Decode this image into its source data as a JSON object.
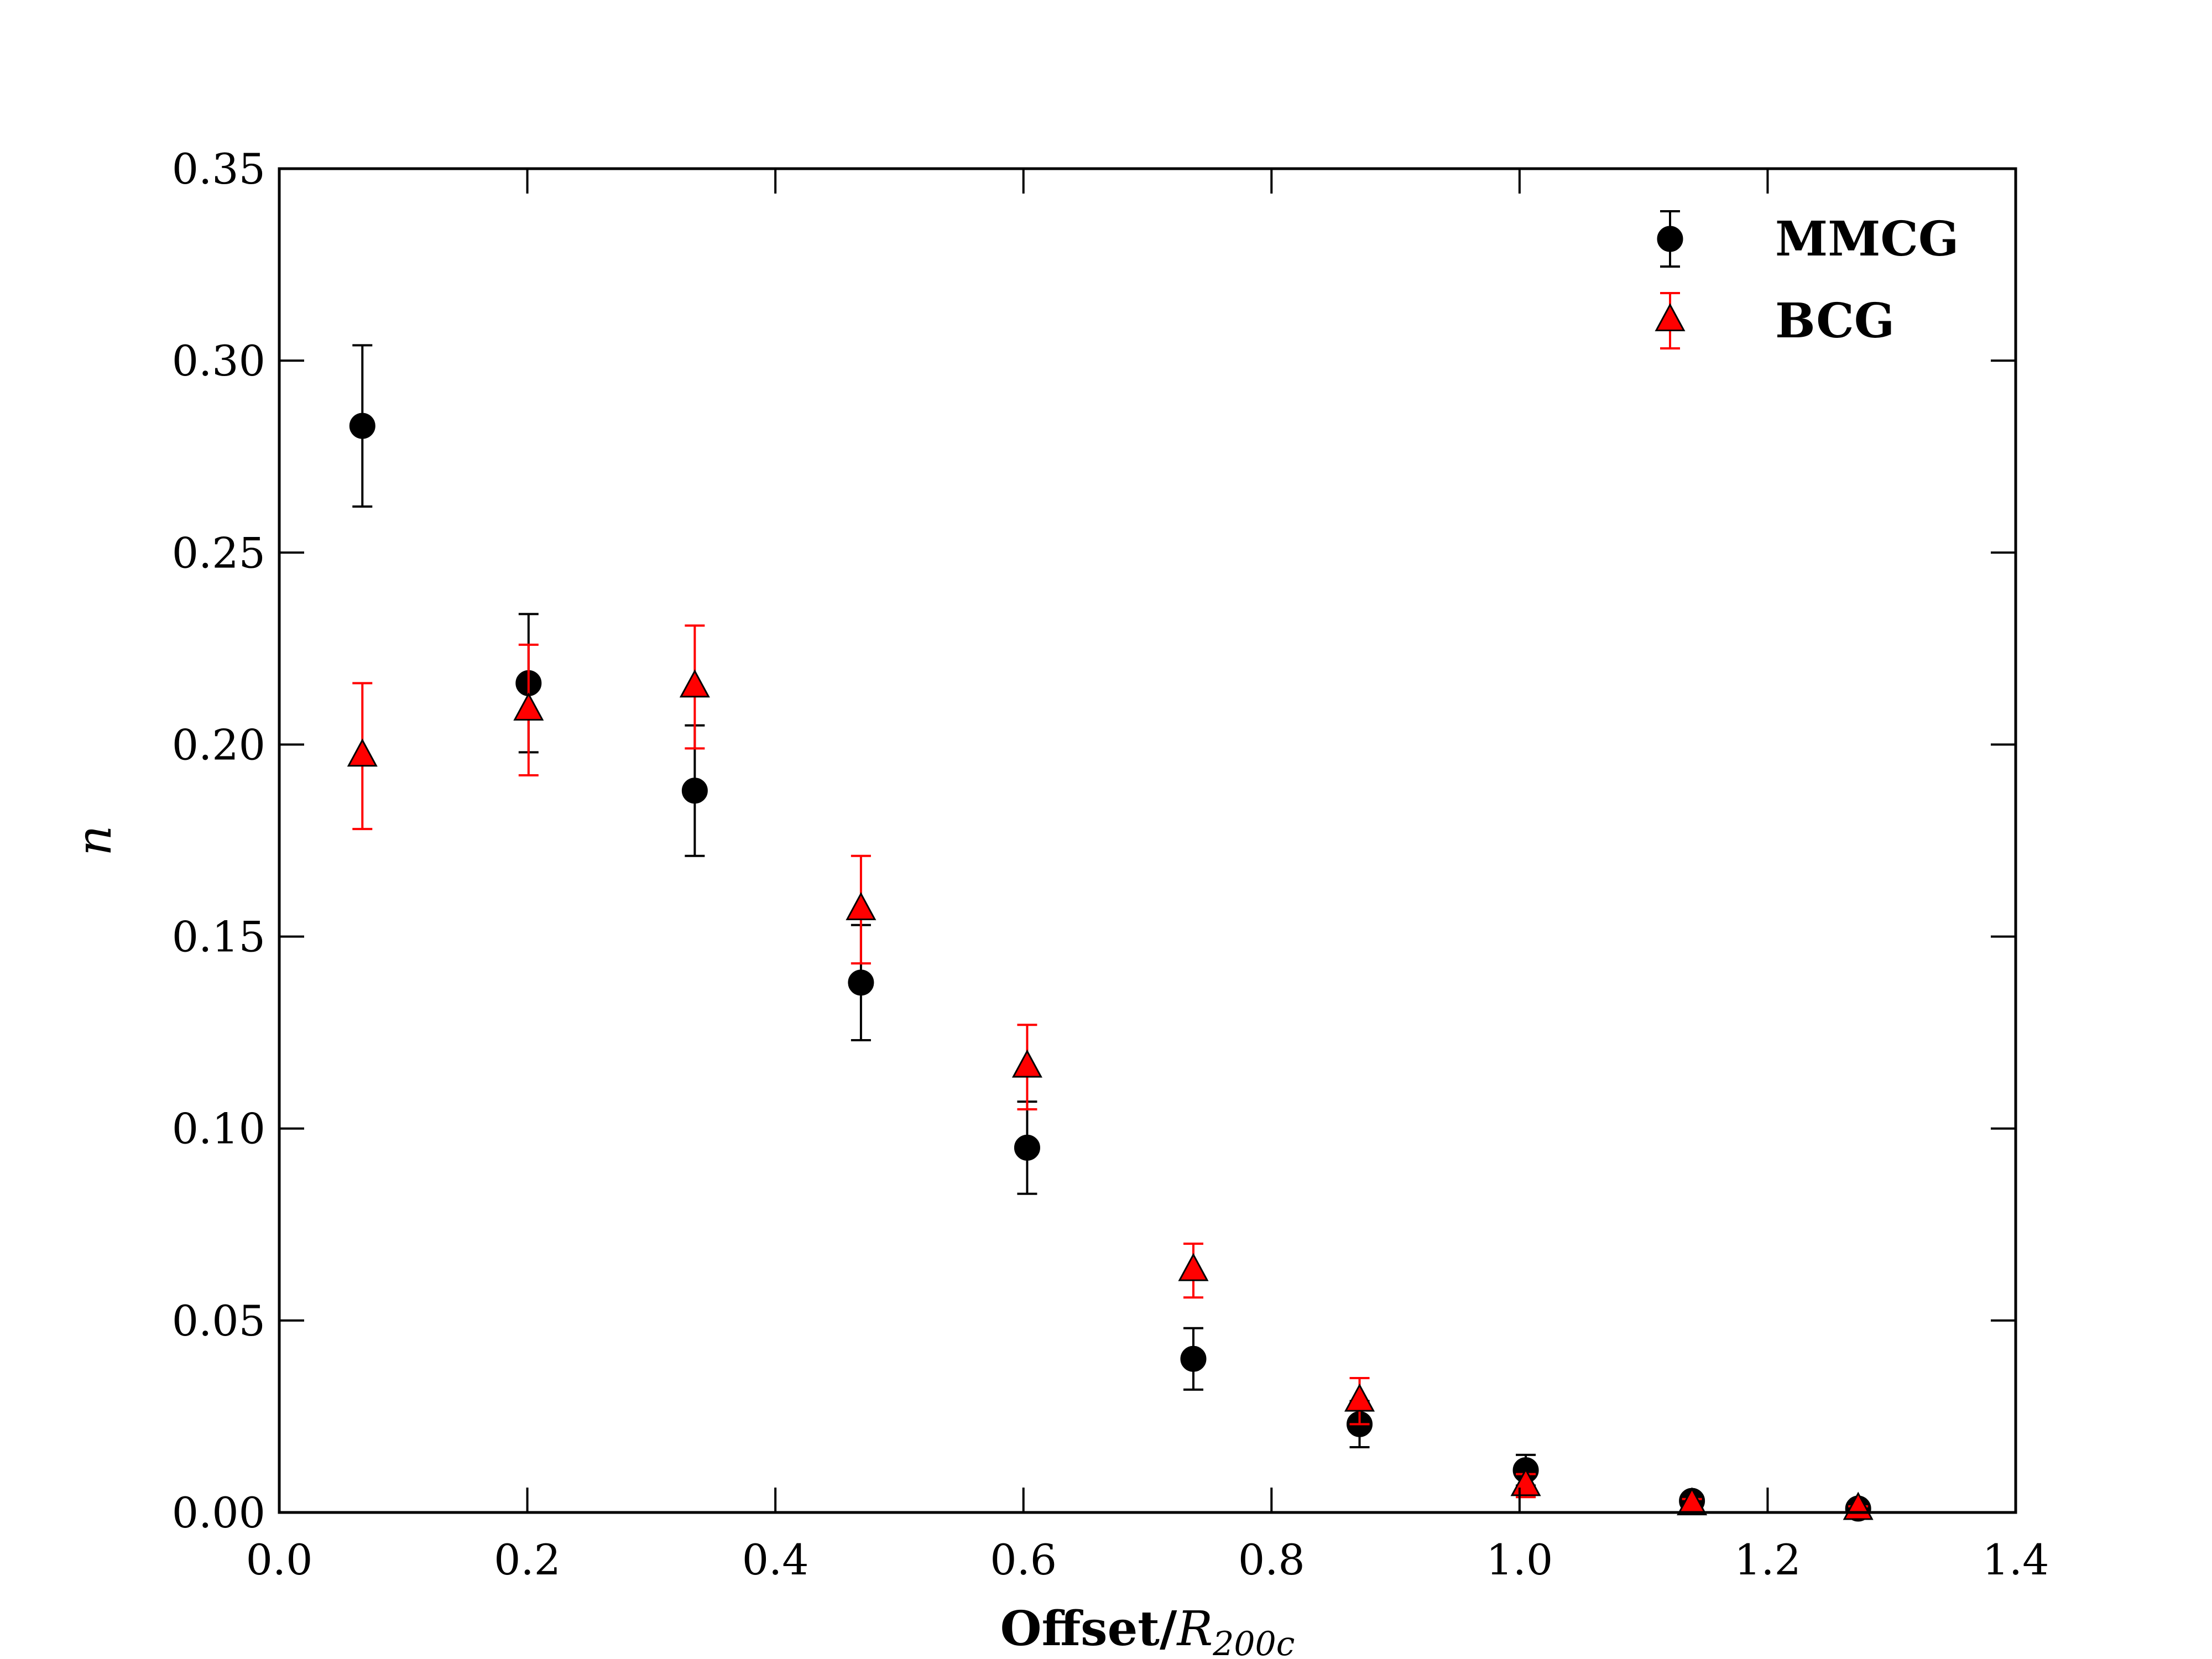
{
  "chart_data": {
    "type": "scatter",
    "title": "",
    "xlabel": {
      "prefix": "Offset/",
      "symbol": "R",
      "subscript": "200c"
    },
    "ylabel": "n",
    "xlim": [
      0.0,
      1.4
    ],
    "ylim": [
      0.0,
      0.35
    ],
    "xticks": [
      "0.0",
      "0.2",
      "0.4",
      "0.6",
      "0.8",
      "1.0",
      "1.2",
      "1.4"
    ],
    "yticks": [
      "0.00",
      "0.05",
      "0.10",
      "0.15",
      "0.20",
      "0.25",
      "0.30",
      "0.35"
    ],
    "grid": false,
    "legend": "top-right",
    "series": [
      {
        "name": "MMCG",
        "marker": "circle",
        "color": "#000000",
        "errorbar_color": "#000000",
        "x": [
          0.067,
          0.201,
          0.335,
          0.469,
          0.603,
          0.737,
          0.871,
          1.005,
          1.139,
          1.273
        ],
        "y": [
          0.283,
          0.216,
          0.188,
          0.138,
          0.095,
          0.04,
          0.023,
          0.011,
          0.003,
          0.001
        ],
        "err": [
          0.021,
          0.018,
          0.017,
          0.015,
          0.012,
          0.008,
          0.006,
          0.004,
          0.0015,
          0.001
        ]
      },
      {
        "name": "BCG",
        "marker": "triangle",
        "color": "#ff0000",
        "errorbar_color": "#ff0000",
        "x": [
          0.067,
          0.201,
          0.335,
          0.469,
          0.603,
          0.737,
          0.871,
          1.005,
          1.139,
          1.273
        ],
        "y": [
          0.197,
          0.209,
          0.215,
          0.157,
          0.116,
          0.063,
          0.029,
          0.007,
          0.002,
          0.0008
        ],
        "err": [
          0.019,
          0.017,
          0.016,
          0.014,
          0.011,
          0.007,
          0.006,
          0.003,
          0.0015,
          0.0008
        ]
      }
    ]
  }
}
